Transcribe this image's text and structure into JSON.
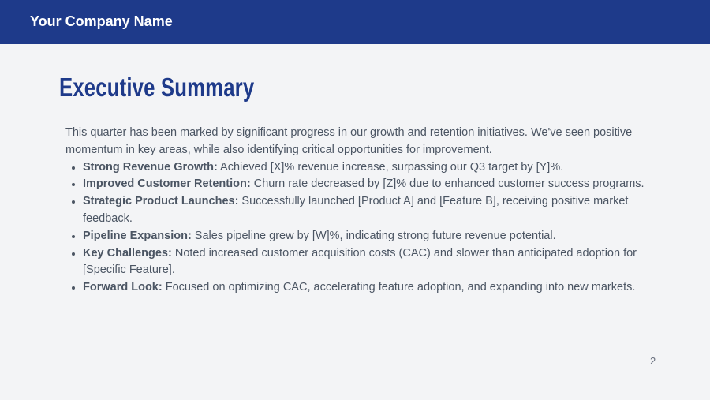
{
  "header": {
    "company": "Your Company Name"
  },
  "slide": {
    "title": "Executive Summary",
    "intro": "This quarter has been marked by significant progress in our growth and retention initiatives. We've seen positive momentum in key areas, while also identifying critical opportunities for improvement.",
    "bullets": [
      {
        "label": "Strong Revenue Growth:",
        "text": " Achieved [X]% revenue increase, surpassing our Q3 target by [Y]%."
      },
      {
        "label": "Improved Customer Retention:",
        "text": " Churn rate decreased by [Z]% due to enhanced customer success programs."
      },
      {
        "label": "Strategic Product Launches:",
        "text": " Successfully launched [Product A] and [Feature B], receiving positive market feedback."
      },
      {
        "label": "Pipeline Expansion:",
        "text": " Sales pipeline grew by [W]%, indicating strong future revenue potential."
      },
      {
        "label": "Key Challenges:",
        "text": " Noted increased customer acquisition costs (CAC) and slower than anticipated adoption for [Specific Feature]."
      },
      {
        "label": "Forward Look:",
        "text": " Focused on optimizing CAC, accelerating feature adoption, and expanding into new markets."
      }
    ],
    "page_number": "2"
  },
  "colors": {
    "header": "#1e3a8a",
    "background": "#f3f4f6",
    "text": "#4b5563"
  }
}
